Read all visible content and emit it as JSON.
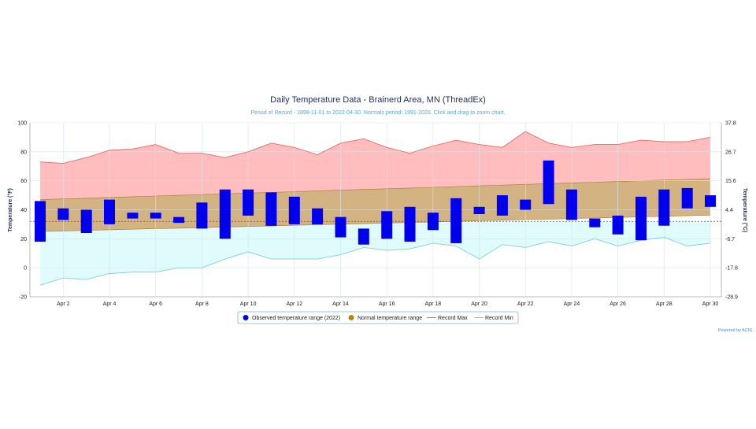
{
  "chart_data": {
    "type": "bar",
    "title": "Daily Temperature Data - Brainerd Area, MN (ThreadEx)",
    "subtitle": "Period of Record - 1898-11-01 to 2022-04-30. Normals period: 1991-2020. Click and drag to zoom chart.",
    "ylabel": "Temperature (°F)",
    "ylabel_right": "Temperature (°C)",
    "ylim": [
      -20,
      100
    ],
    "y_ticks": [
      -20,
      0,
      20,
      40,
      60,
      80,
      100
    ],
    "y_ticks_right": [
      "37.8",
      "26.7",
      "15.6",
      "4.4",
      "-6.7",
      "-17.8",
      "-28.9"
    ],
    "x_tick_labels": [
      "Apr 2",
      "Apr 4",
      "Apr 6",
      "Apr 8",
      "Apr 10",
      "Apr 12",
      "Apr 14",
      "Apr 16",
      "Apr 18",
      "Apr 20",
      "Apr 22",
      "Apr 24",
      "Apr 26",
      "Apr 28",
      "Apr 30"
    ],
    "x_tick_days": [
      2,
      4,
      6,
      8,
      10,
      12,
      14,
      16,
      18,
      20,
      22,
      24,
      26,
      28,
      30
    ],
    "days": [
      1,
      2,
      3,
      4,
      5,
      6,
      7,
      8,
      9,
      10,
      11,
      12,
      13,
      14,
      15,
      16,
      17,
      18,
      19,
      20,
      21,
      22,
      23,
      24,
      25,
      26,
      27,
      28,
      29,
      30
    ],
    "reference_line": 32,
    "legend_position": "bottom",
    "grid": true,
    "series": [
      {
        "name": "Observed temperature range (2022)",
        "color": "#0000ee",
        "low": [
          18,
          33,
          24,
          30,
          34,
          34,
          31,
          27,
          20,
          36,
          29,
          30,
          30,
          21,
          16,
          20,
          18,
          26,
          17,
          37,
          36,
          40,
          44,
          33,
          28,
          23,
          19,
          29,
          41,
          42
        ],
        "high": [
          46,
          41,
          40,
          47,
          38,
          38,
          35,
          45,
          54,
          54,
          52,
          49,
          41,
          35,
          27,
          39,
          42,
          38,
          48,
          42,
          50,
          47,
          74,
          54,
          34,
          36,
          49,
          54,
          55,
          50
        ]
      },
      {
        "name": "Normal temperature range",
        "color": "#b8860b",
        "low": [
          25,
          25.4,
          25.8,
          26.2,
          26.6,
          27,
          27.3,
          27.7,
          28.1,
          28.5,
          28.9,
          29.3,
          29.7,
          30.1,
          30.4,
          30.8,
          31.2,
          31.6,
          32,
          32.4,
          32.8,
          33.2,
          33.5,
          33.9,
          34.3,
          34.7,
          35.1,
          35.5,
          35.9,
          36.3
        ],
        "high": [
          47,
          47.5,
          48,
          48.5,
          49,
          49.5,
          50,
          50.5,
          51,
          51.5,
          52,
          52.5,
          53,
          53.5,
          54,
          54.5,
          55,
          55.5,
          56,
          56.5,
          57,
          57.5,
          58,
          58.5,
          59,
          59.5,
          60,
          60.5,
          61,
          61.5
        ]
      },
      {
        "name": "Record Max",
        "color": "#e06a6a",
        "values": [
          73,
          72,
          76,
          81,
          82,
          85,
          79,
          79,
          76,
          80,
          86,
          83,
          78,
          86,
          89,
          83,
          79,
          84,
          88,
          85,
          83,
          94,
          86,
          83,
          85,
          85,
          88,
          87,
          87,
          90
        ]
      },
      {
        "name": "Record Min",
        "color": "#7fd0d8",
        "values": [
          -12,
          -7,
          -8,
          -4,
          -3,
          -3,
          0,
          0,
          6,
          11,
          6,
          6,
          6,
          9,
          14,
          12,
          13,
          17,
          15,
          6,
          16,
          14,
          18,
          15,
          20,
          15,
          19,
          21,
          15,
          17
        ]
      }
    ]
  },
  "colors": {
    "record_fill": "#ffbdbd",
    "normal_fill": "#d4b383",
    "cold_fill": "#e0fbfb",
    "observed": "#0000ee",
    "normal_marker": "#b8860b"
  },
  "credit": "Powered by ACIS"
}
